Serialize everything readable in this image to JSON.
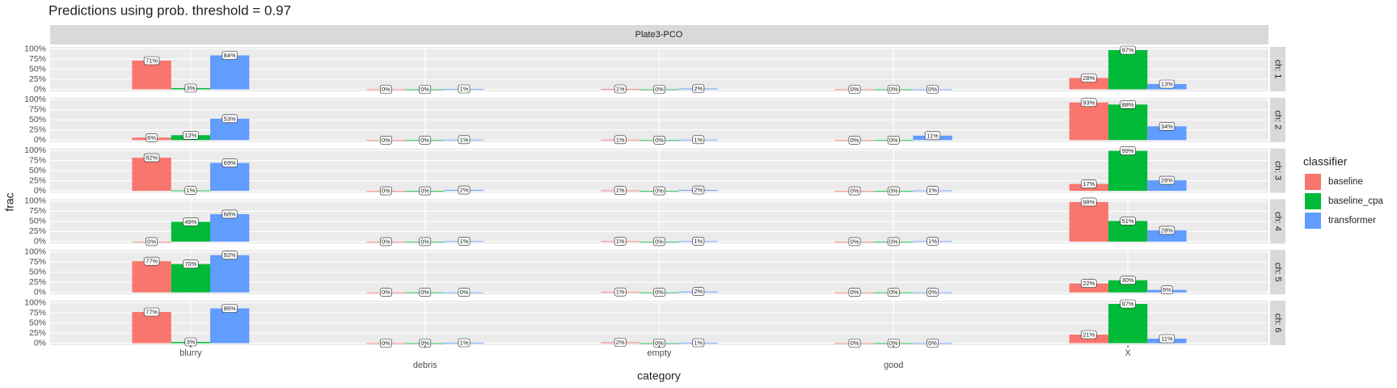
{
  "chart_data": {
    "type": "bar",
    "title": "Predictions using prob. threshold = 0.97",
    "facet_title": "Plate3-PCO",
    "x_label": "category",
    "y_label": "frac",
    "legend_title": "classifier",
    "categories": [
      "blurry",
      "debris",
      "empty",
      "good",
      "X"
    ],
    "ylim": [
      -5,
      105
    ],
    "yticks": [
      {
        "value": 0,
        "label": "0%"
      },
      {
        "value": 25,
        "label": "25%"
      },
      {
        "value": 50,
        "label": "50%"
      },
      {
        "value": 75,
        "label": "75%"
      },
      {
        "value": 100,
        "label": "100%"
      }
    ],
    "grid": true,
    "series": [
      {
        "name": "baseline",
        "color": "#F8766D"
      },
      {
        "name": "baseline_cpa",
        "color": "#00BA38"
      },
      {
        "name": "transformer",
        "color": "#619CFF"
      }
    ],
    "panels": [
      {
        "label": "ch: 1",
        "series": [
          {
            "values": [
              71,
              0,
              1,
              0,
              28
            ],
            "value_labels": [
              "71%",
              "0%",
              "1%",
              "0%",
              "28%"
            ]
          },
          {
            "values": [
              3,
              0,
              0,
              0,
              97
            ],
            "value_labels": [
              "3%",
              "0%",
              "0%",
              "0%",
              "97%"
            ]
          },
          {
            "values": [
              84,
              1,
              2,
              0,
              13
            ],
            "value_labels": [
              "84%",
              "1%",
              "2%",
              "0%",
              "13%"
            ]
          }
        ]
      },
      {
        "label": "ch: 2",
        "series": [
          {
            "values": [
              6,
              0,
              1,
              0,
              93
            ],
            "value_labels": [
              "6%",
              "0%",
              "1%",
              "0%",
              "93%"
            ]
          },
          {
            "values": [
              12,
              0,
              0,
              0,
              88
            ],
            "value_labels": [
              "12%",
              "0%",
              "0%",
              "0%",
              "88%"
            ]
          },
          {
            "values": [
              53,
              1,
              1,
              11,
              34
            ],
            "value_labels": [
              "53%",
              "1%",
              "1%",
              "11%",
              "34%"
            ]
          }
        ]
      },
      {
        "label": "ch: 3",
        "series": [
          {
            "values": [
              82,
              0,
              1,
              0,
              17
            ],
            "value_labels": [
              "82%",
              "0%",
              "1%",
              "0%",
              "17%"
            ]
          },
          {
            "values": [
              1,
              0,
              0,
              0,
              99
            ],
            "value_labels": [
              "1%",
              "0%",
              "0%",
              "0%",
              "99%"
            ]
          },
          {
            "values": [
              69,
              2,
              2,
              1,
              26
            ],
            "value_labels": [
              "69%",
              "2%",
              "2%",
              "1%",
              "26%"
            ]
          }
        ]
      },
      {
        "label": "ch: 4",
        "series": [
          {
            "values": [
              0,
              0,
              1,
              0,
              98
            ],
            "value_labels": [
              "0%",
              "0%",
              "1%",
              "0%",
              "98%"
            ]
          },
          {
            "values": [
              49,
              0,
              0,
              0,
              51
            ],
            "value_labels": [
              "49%",
              "0%",
              "0%",
              "0%",
              "51%"
            ]
          },
          {
            "values": [
              68,
              1,
              1,
              1,
              28
            ],
            "value_labels": [
              "68%",
              "1%",
              "1%",
              "1%",
              "28%"
            ]
          }
        ]
      },
      {
        "label": "ch: 5",
        "series": [
          {
            "values": [
              77,
              0,
              1,
              0,
              22
            ],
            "value_labels": [
              "77%",
              "0%",
              "1%",
              "0%",
              "22%"
            ]
          },
          {
            "values": [
              70,
              0,
              0,
              0,
              30
            ],
            "value_labels": [
              "70%",
              "0%",
              "0%",
              "0%",
              "30%"
            ]
          },
          {
            "values": [
              92,
              0,
              2,
              0,
              6
            ],
            "value_labels": [
              "92%",
              "0%",
              "2%",
              "0%",
              "6%"
            ]
          }
        ]
      },
      {
        "label": "ch: 6",
        "series": [
          {
            "values": [
              77,
              0,
              2,
              0,
              21
            ],
            "value_labels": [
              "77%",
              "0%",
              "2%",
              "0%",
              "21%"
            ]
          },
          {
            "values": [
              3,
              0,
              0,
              0,
              97
            ],
            "value_labels": [
              "3%",
              "0%",
              "0%",
              "0%",
              "97%"
            ]
          },
          {
            "values": [
              86,
              1,
              1,
              0,
              11
            ],
            "value_labels": [
              "86%",
              "1%",
              "1%",
              "0%",
              "11%"
            ]
          }
        ]
      }
    ]
  }
}
